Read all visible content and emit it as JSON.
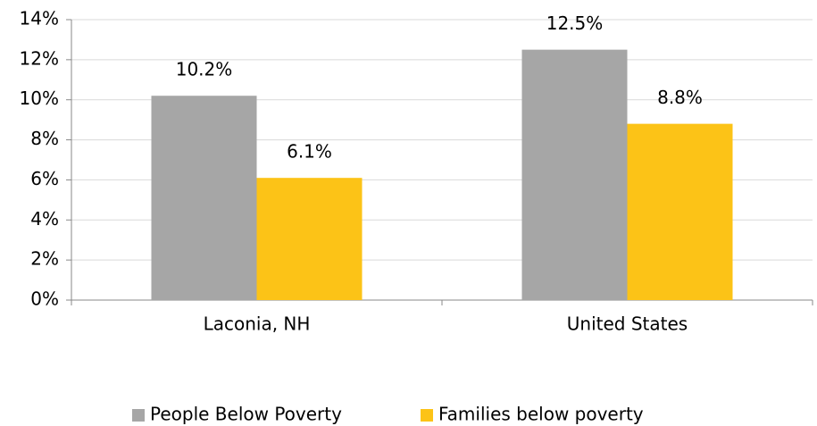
{
  "chart_data": {
    "type": "bar",
    "categories": [
      "Laconia, NH",
      "United States"
    ],
    "series": [
      {
        "name": "People Below Poverty",
        "color": "#a6a6a6",
        "values": [
          10.2,
          12.5
        ],
        "value_labels": [
          "10.2%",
          "12.5%"
        ]
      },
      {
        "name": "Families below poverty",
        "color": "#fcc317",
        "values": [
          6.1,
          8.8
        ],
        "value_labels": [
          "6.1%",
          "8.8%"
        ]
      }
    ],
    "ylim": [
      0,
      14
    ],
    "yticks": [
      {
        "value": 0,
        "label": "0%"
      },
      {
        "value": 2,
        "label": "2%"
      },
      {
        "value": 4,
        "label": "4%"
      },
      {
        "value": 6,
        "label": "6%"
      },
      {
        "value": 8,
        "label": "8%"
      },
      {
        "value": 10,
        "label": "10%"
      },
      {
        "value": 12,
        "label": "12%"
      },
      {
        "value": 14,
        "label": "14%"
      }
    ],
    "grid": true,
    "legend": "bottom"
  }
}
